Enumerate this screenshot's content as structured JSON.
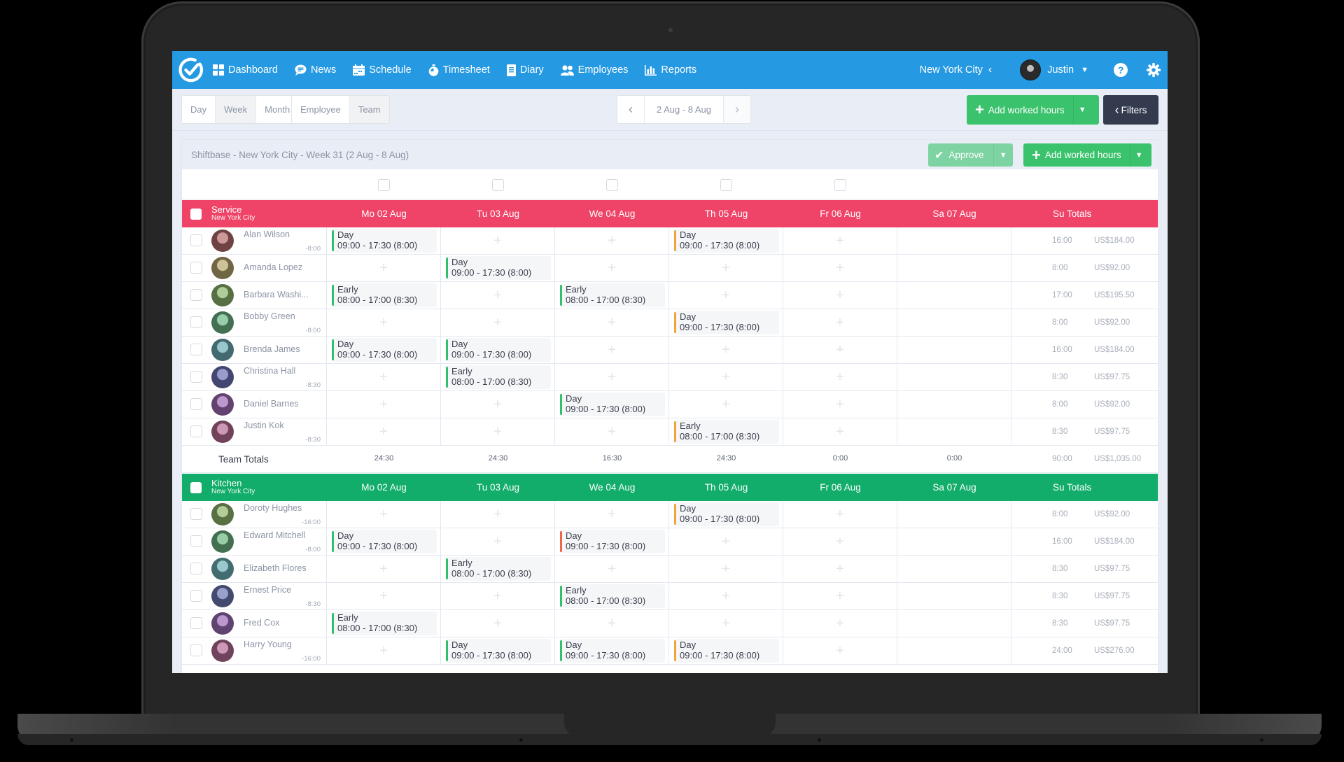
{
  "nav": {
    "items": [
      {
        "label": "Dashboard",
        "icon": "dashboard-icon"
      },
      {
        "label": "News",
        "icon": "chat-bubble-icon"
      },
      {
        "label": "Schedule",
        "icon": "calendar-icon"
      },
      {
        "label": "Timesheet",
        "icon": "stopwatch-icon"
      },
      {
        "label": "Diary",
        "icon": "notebook-icon"
      },
      {
        "label": "Employees",
        "icon": "users-icon"
      },
      {
        "label": "Reports",
        "icon": "bar-chart-icon"
      }
    ],
    "location": "New York City",
    "user": "Justin",
    "help": "?"
  },
  "toolbar": {
    "period_tabs": [
      "Day",
      "Week",
      "Month"
    ],
    "period_active": "Week",
    "group_tabs": [
      "Employee",
      "Team"
    ],
    "group_active": "Team",
    "date_range": "2 Aug - 8 Aug",
    "prev": "‹",
    "next": "›",
    "add_worked_hours": "Add worked hours",
    "filters": "Filters"
  },
  "panel": {
    "title": "Shiftbase - New York City - Week 31 (2 Aug - 8 Aug)",
    "approve": "Approve",
    "add_worked_hours": "Add worked hours"
  },
  "days": [
    "Mo 02 Aug",
    "Tu 03 Aug",
    "We 04 Aug",
    "Th 05 Aug",
    "Fr 06 Aug",
    "Sa 07 Aug",
    "Su Totals"
  ],
  "colors": {
    "nav": "#2599e2",
    "service": "#ef4367",
    "kitchen": "#12ad6a",
    "green_button": "#3bc26d",
    "filters_button": "#343b4e",
    "shift_green": "#33c06a",
    "shift_orange": "#f0a43b",
    "shift_red": "#f06548"
  },
  "teams": [
    {
      "name": "Service",
      "location": "New York City",
      "team_totals_label": "Team Totals",
      "day_totals": [
        "24:30",
        "24:30",
        "16:30",
        "24:30",
        "0:00",
        "0:00"
      ],
      "total_hours": "90:00",
      "total_cost": "US$1,035.00",
      "employees": [
        {
          "name": "Alan Wilson",
          "balance": "-8:00",
          "hours": "16:00",
          "cost": "US$184.00",
          "shifts": {
            "0": {
              "name": "Day",
              "time": "09:00 - 17:30 (8:00)",
              "color": "green"
            },
            "3": {
              "name": "Day",
              "time": "09:00 - 17:30 (8:00)",
              "color": "orange"
            }
          }
        },
        {
          "name": "Amanda Lopez",
          "balance": "",
          "hours": "8:00",
          "cost": "US$92.00",
          "shifts": {
            "1": {
              "name": "Day",
              "time": "09:00 - 17:30 (8:00)",
              "color": "green"
            }
          }
        },
        {
          "name": "Barbara Washi...",
          "balance": "",
          "hours": "17:00",
          "cost": "US$195.50",
          "shifts": {
            "0": {
              "name": "Early",
              "time": "08:00 - 17:00 (8:30)",
              "color": "green"
            },
            "2": {
              "name": "Early",
              "time": "08:00 - 17:00 (8:30)",
              "color": "green"
            }
          }
        },
        {
          "name": "Bobby Green",
          "balance": "-8:00",
          "hours": "8:00",
          "cost": "US$92.00",
          "shifts": {
            "3": {
              "name": "Day",
              "time": "09:00 - 17:30 (8:00)",
              "color": "orange"
            }
          }
        },
        {
          "name": "Brenda James",
          "balance": "",
          "hours": "16:00",
          "cost": "US$184.00",
          "shifts": {
            "0": {
              "name": "Day",
              "time": "09:00 - 17:30 (8:00)",
              "color": "green"
            },
            "1": {
              "name": "Day",
              "time": "09:00 - 17:30 (8:00)",
              "color": "green"
            }
          }
        },
        {
          "name": "Christina Hall",
          "balance": "-8:30",
          "hours": "8:30",
          "cost": "US$97.75",
          "shifts": {
            "1": {
              "name": "Early",
              "time": "08:00 - 17:00 (8:30)",
              "color": "green"
            }
          }
        },
        {
          "name": "Daniel Barnes",
          "balance": "",
          "hours": "8:00",
          "cost": "US$92.00",
          "shifts": {
            "2": {
              "name": "Day",
              "time": "09:00 - 17:30 (8:00)",
              "color": "green"
            }
          }
        },
        {
          "name": "Justin Kok",
          "balance": "-8:30",
          "hours": "8:30",
          "cost": "US$97.75",
          "shifts": {
            "3": {
              "name": "Early",
              "time": "08:00 - 17:00 (8:30)",
              "color": "orange"
            }
          }
        }
      ]
    },
    {
      "name": "Kitchen",
      "location": "New York City",
      "employees": [
        {
          "name": "Doroty Hughes",
          "balance": "-16:00",
          "hours": "8:00",
          "cost": "US$92.00",
          "shifts": {
            "3": {
              "name": "Day",
              "time": "09:00 - 17:30 (8:00)",
              "color": "orange"
            }
          }
        },
        {
          "name": "Edward Mitchell",
          "balance": "-8:00",
          "hours": "16:00",
          "cost": "US$184.00",
          "shifts": {
            "0": {
              "name": "Day",
              "time": "09:00 - 17:30 (8:00)",
              "color": "green"
            },
            "2": {
              "name": "Day",
              "time": "09:00 - 17:30 (8:00)",
              "color": "red"
            }
          }
        },
        {
          "name": "Elizabeth Flores",
          "balance": "",
          "hours": "8:30",
          "cost": "US$97.75",
          "shifts": {
            "1": {
              "name": "Early",
              "time": "08:00 - 17:00 (8:30)",
              "color": "green"
            }
          }
        },
        {
          "name": "Ernest Price",
          "balance": "-8:30",
          "hours": "8:30",
          "cost": "US$97.75",
          "shifts": {
            "2": {
              "name": "Early",
              "time": "08:00 - 17:00 (8:30)",
              "color": "green"
            }
          }
        },
        {
          "name": "Fred Cox",
          "balance": "",
          "hours": "8:30",
          "cost": "US$97.75",
          "shifts": {
            "0": {
              "name": "Early",
              "time": "08:00 - 17:00 (8:30)",
              "color": "green"
            }
          }
        },
        {
          "name": "Harry Young",
          "balance": "-16:00",
          "hours": "24:00",
          "cost": "US$276.00",
          "shifts": {
            "1": {
              "name": "Day",
              "time": "09:00 - 17:30 (8:00)",
              "color": "green"
            },
            "2": {
              "name": "Day",
              "time": "09:00 - 17:30 (8:00)",
              "color": "green"
            },
            "3": {
              "name": "Day",
              "time": "09:00 - 17:30 (8:00)",
              "color": "orange"
            }
          }
        }
      ]
    }
  ]
}
